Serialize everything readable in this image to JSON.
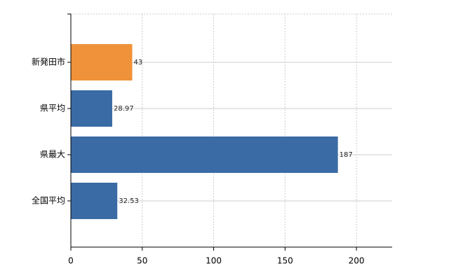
{
  "chart_data": {
    "type": "hbar",
    "categories": [
      "新発田市",
      "県平均",
      "県最大",
      "全国平均"
    ],
    "values": [
      43,
      28.97,
      187,
      32.53
    ],
    "colors": [
      "#f0923a",
      "#3a6ba5",
      "#3a6ba5",
      "#3a6ba5"
    ],
    "xlim": [
      0,
      225
    ],
    "xticks": [
      0,
      50,
      100,
      150,
      200
    ],
    "grid": true
  }
}
